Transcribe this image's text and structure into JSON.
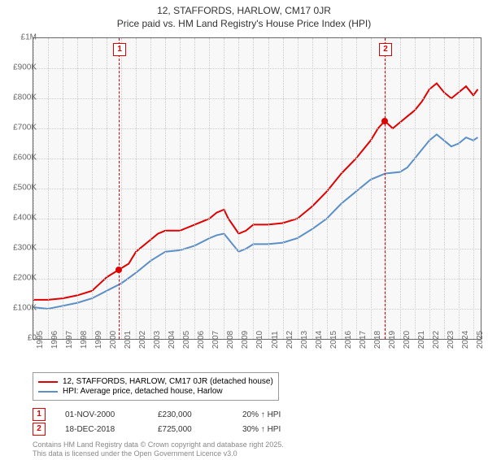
{
  "title": "12, STAFFORDS, HARLOW, CM17 0JR",
  "subtitle": "Price paid vs. HM Land Registry's House Price Index (HPI)",
  "chart": {
    "type": "line",
    "background_color": "#f8f8f8",
    "grid_color": "#cccccc",
    "border_color": "#666666",
    "x_years": [
      1995,
      1996,
      1997,
      1998,
      1999,
      2000,
      2001,
      2002,
      2003,
      2004,
      2005,
      2006,
      2007,
      2008,
      2009,
      2010,
      2011,
      2012,
      2013,
      2014,
      2015,
      2016,
      2017,
      2018,
      2019,
      2020,
      2021,
      2022,
      2023,
      2024,
      2025
    ],
    "xlim": [
      1995,
      2025.5
    ],
    "ylim": [
      0,
      1000000
    ],
    "ytick_step": 100000,
    "y_tick_labels": [
      "£0",
      "£100K",
      "£200K",
      "£300K",
      "£400K",
      "£500K",
      "£600K",
      "£700K",
      "£800K",
      "£900K",
      "£1M"
    ],
    "series": {
      "property": {
        "label": "12, STAFFORDS, HARLOW, CM17 0JR (detached house)",
        "color": "#e00000",
        "line_width": 2,
        "data": [
          [
            1995,
            130000
          ],
          [
            1996,
            130000
          ],
          [
            1997,
            135000
          ],
          [
            1998,
            145000
          ],
          [
            1999,
            160000
          ],
          [
            2000,
            205000
          ],
          [
            2000.83,
            230000
          ],
          [
            2001.5,
            250000
          ],
          [
            2002,
            290000
          ],
          [
            2003,
            330000
          ],
          [
            2003.5,
            350000
          ],
          [
            2004,
            360000
          ],
          [
            2005,
            360000
          ],
          [
            2006,
            380000
          ],
          [
            2007,
            400000
          ],
          [
            2007.5,
            420000
          ],
          [
            2008,
            430000
          ],
          [
            2008.3,
            400000
          ],
          [
            2009,
            350000
          ],
          [
            2009.5,
            360000
          ],
          [
            2010,
            380000
          ],
          [
            2011,
            380000
          ],
          [
            2012,
            385000
          ],
          [
            2013,
            400000
          ],
          [
            2014,
            440000
          ],
          [
            2015,
            490000
          ],
          [
            2016,
            550000
          ],
          [
            2017,
            600000
          ],
          [
            2018,
            660000
          ],
          [
            2018.5,
            700000
          ],
          [
            2018.96,
            725000
          ],
          [
            2019.5,
            700000
          ],
          [
            2020,
            720000
          ],
          [
            2020.5,
            740000
          ],
          [
            2021,
            760000
          ],
          [
            2021.5,
            790000
          ],
          [
            2022,
            830000
          ],
          [
            2022.5,
            850000
          ],
          [
            2023,
            820000
          ],
          [
            2023.5,
            800000
          ],
          [
            2024,
            820000
          ],
          [
            2024.5,
            840000
          ],
          [
            2025,
            810000
          ],
          [
            2025.3,
            830000
          ]
        ]
      },
      "hpi": {
        "label": "HPI: Average price, detached house, Harlow",
        "color": "#5b8fc7",
        "line_width": 2,
        "data": [
          [
            1995,
            105000
          ],
          [
            1996,
            100000
          ],
          [
            1997,
            110000
          ],
          [
            1998,
            120000
          ],
          [
            1999,
            135000
          ],
          [
            2000,
            160000
          ],
          [
            2001,
            185000
          ],
          [
            2002,
            220000
          ],
          [
            2003,
            260000
          ],
          [
            2004,
            290000
          ],
          [
            2005,
            295000
          ],
          [
            2006,
            310000
          ],
          [
            2007,
            335000
          ],
          [
            2007.5,
            345000
          ],
          [
            2008,
            350000
          ],
          [
            2008.5,
            320000
          ],
          [
            2009,
            290000
          ],
          [
            2009.5,
            300000
          ],
          [
            2010,
            315000
          ],
          [
            2011,
            315000
          ],
          [
            2012,
            320000
          ],
          [
            2013,
            335000
          ],
          [
            2014,
            365000
          ],
          [
            2015,
            400000
          ],
          [
            2016,
            450000
          ],
          [
            2017,
            490000
          ],
          [
            2018,
            530000
          ],
          [
            2019,
            550000
          ],
          [
            2020,
            555000
          ],
          [
            2020.5,
            570000
          ],
          [
            2021,
            600000
          ],
          [
            2021.5,
            630000
          ],
          [
            2022,
            660000
          ],
          [
            2022.5,
            680000
          ],
          [
            2023,
            660000
          ],
          [
            2023.5,
            640000
          ],
          [
            2024,
            650000
          ],
          [
            2024.5,
            670000
          ],
          [
            2025,
            660000
          ],
          [
            2025.3,
            670000
          ]
        ]
      }
    },
    "markers": [
      {
        "n": "1",
        "year": 2000.83,
        "price": 230000
      },
      {
        "n": "2",
        "year": 2018.96,
        "price": 725000
      }
    ]
  },
  "legend": {
    "items": [
      {
        "color": "#e00000",
        "label": "12, STAFFORDS, HARLOW, CM17 0JR (detached house)"
      },
      {
        "color": "#5b8fc7",
        "label": "HPI: Average price, detached house, Harlow"
      }
    ]
  },
  "sales": [
    {
      "n": "1",
      "date": "01-NOV-2000",
      "price": "£230,000",
      "pct": "20% ↑ HPI"
    },
    {
      "n": "2",
      "date": "18-DEC-2018",
      "price": "£725,000",
      "pct": "30% ↑ HPI"
    }
  ],
  "footer": {
    "l1": "Contains HM Land Registry data © Crown copyright and database right 2025.",
    "l2": "This data is licensed under the Open Government Licence v3.0"
  }
}
